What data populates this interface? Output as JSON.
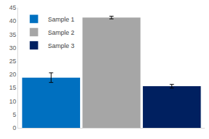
{
  "chart_data": {
    "type": "bar",
    "categories": [
      null
    ],
    "series": [
      {
        "name": "Sample 1",
        "color": "#0070c0",
        "values": [
          18.8
        ],
        "error": [
          1.8
        ]
      },
      {
        "name": "Sample 2",
        "color": "#a6a6a6",
        "values": [
          41.3
        ],
        "error": [
          0.5
        ]
      },
      {
        "name": "Sample 3",
        "color": "#002060",
        "values": [
          15.6
        ],
        "error": [
          0.7
        ]
      }
    ],
    "ylim": [
      0,
      45
    ],
    "yticks": [
      0,
      5,
      10,
      15,
      20,
      25,
      30,
      35,
      40,
      45
    ],
    "grid": false,
    "legend": "top-left",
    "tick_labels": "y"
  }
}
